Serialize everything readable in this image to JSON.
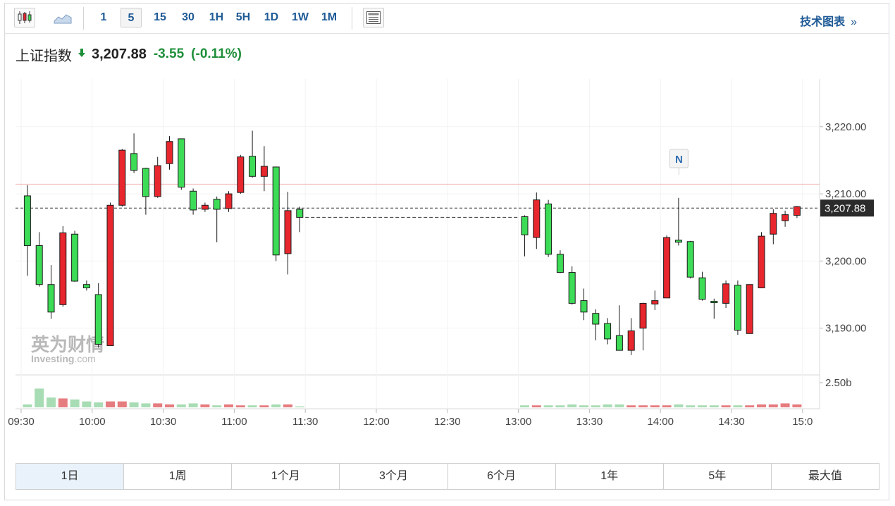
{
  "toolbar": {
    "intervals": [
      "1",
      "5",
      "15",
      "30",
      "1H",
      "5H",
      "1D",
      "1W",
      "1M"
    ],
    "active_interval": "5",
    "tech_link": "技术图表",
    "tech_link_arrow": "»"
  },
  "quote": {
    "name": "上证指数",
    "price": "3,207.88",
    "change": "-3.55",
    "change_pct": "(-0.11%)",
    "direction": "down",
    "up_color": "#e8262d",
    "down_color": "#1f8f3a"
  },
  "watermark": {
    "line1": "英为财情",
    "line2": "Investing",
    "line2_suffix": ".com"
  },
  "chart_data": {
    "type": "candlestick",
    "interval": "5",
    "x_ticks": [
      "09:30",
      "10:00",
      "10:30",
      "11:00",
      "11:30",
      "12:00",
      "12:30",
      "13:00",
      "13:30",
      "14:00",
      "14:30",
      "15:0"
    ],
    "y_ticks": [
      "3,220.00",
      "3,210.00",
      "3,200.00",
      "3,190.00"
    ],
    "y_tick_values": [
      3220,
      3210,
      3200,
      3190
    ],
    "ylim": [
      3183.04,
      3227.11
    ],
    "volume_tick_label": "2.50b",
    "volume_max": 3.0,
    "last_price": 3207.88,
    "last_price_label": "3,207.88",
    "prev_close": 3211.43,
    "prev_close_color": "#f4b8b8",
    "up_color": "#e8262d",
    "down_color": "#3ddc57",
    "candle_outline": "#1a1a1a",
    "annotation": {
      "text": "N",
      "time": "14:05"
    },
    "sessions": [
      {
        "start": "09:30",
        "candles": [
          {
            "o": 3209.7,
            "h": 3211.3,
            "l": 3197.8,
            "c": 3202.3
          },
          {
            "o": 3202.3,
            "h": 3204.3,
            "l": 3196.2,
            "c": 3196.5
          },
          {
            "o": 3196.5,
            "h": 3199.4,
            "l": 3191.4,
            "c": 3192.4
          },
          {
            "o": 3193.5,
            "h": 3205.2,
            "l": 3193.2,
            "c": 3204.2
          },
          {
            "o": 3204.0,
            "h": 3204.5,
            "l": 3196.9,
            "c": 3197.0
          },
          {
            "o": 3196.5,
            "h": 3197.1,
            "l": 3195.6,
            "c": 3196.0
          },
          {
            "o": 3195.0,
            "h": 3196.7,
            "l": 3187.1,
            "c": 3187.6
          },
          {
            "o": 3187.4,
            "h": 3208.7,
            "l": 3187.4,
            "c": 3208.3
          },
          {
            "o": 3208.3,
            "h": 3216.7,
            "l": 3208.1,
            "c": 3216.5
          },
          {
            "o": 3216.0,
            "h": 3219.0,
            "l": 3213.1,
            "c": 3213.5
          },
          {
            "o": 3213.8,
            "h": 3213.9,
            "l": 3206.9,
            "c": 3209.6
          },
          {
            "o": 3209.6,
            "h": 3215.5,
            "l": 3209.4,
            "c": 3214.2
          },
          {
            "o": 3214.5,
            "h": 3218.6,
            "l": 3213.6,
            "c": 3217.8
          },
          {
            "o": 3218.2,
            "h": 3218.2,
            "l": 3210.6,
            "c": 3211.0
          },
          {
            "o": 3210.4,
            "h": 3210.8,
            "l": 3206.9,
            "c": 3207.6
          },
          {
            "o": 3207.7,
            "h": 3208.7,
            "l": 3207.3,
            "c": 3208.3
          },
          {
            "o": 3209.2,
            "h": 3209.6,
            "l": 3202.8,
            "c": 3207.7
          },
          {
            "o": 3207.8,
            "h": 3210.4,
            "l": 3207.3,
            "c": 3210.0
          },
          {
            "o": 3210.2,
            "h": 3215.8,
            "l": 3210.0,
            "c": 3215.5
          },
          {
            "o": 3215.6,
            "h": 3219.4,
            "l": 3212.4,
            "c": 3212.6
          },
          {
            "o": 3212.6,
            "h": 3217.1,
            "l": 3210.4,
            "c": 3214.1
          },
          {
            "o": 3214.0,
            "h": 3214.0,
            "l": 3200.0,
            "c": 3200.9
          },
          {
            "o": 3201.1,
            "h": 3210.3,
            "l": 3198.0,
            "c": 3207.5
          },
          {
            "o": 3207.7,
            "h": 3208.1,
            "l": 3204.3,
            "c": 3206.5
          }
        ]
      },
      {
        "start": "13:00",
        "candles": [
          {
            "o": 3206.6,
            "h": 3206.8,
            "l": 3200.7,
            "c": 3203.9
          },
          {
            "o": 3203.5,
            "h": 3210.2,
            "l": 3201.8,
            "c": 3209.1
          },
          {
            "o": 3208.5,
            "h": 3209.1,
            "l": 3200.6,
            "c": 3201.0
          },
          {
            "o": 3201.0,
            "h": 3201.6,
            "l": 3198.2,
            "c": 3198.3
          },
          {
            "o": 3198.3,
            "h": 3199.2,
            "l": 3193.5,
            "c": 3193.7
          },
          {
            "o": 3194.1,
            "h": 3195.9,
            "l": 3191.2,
            "c": 3192.4
          },
          {
            "o": 3192.2,
            "h": 3192.8,
            "l": 3188.2,
            "c": 3190.6
          },
          {
            "o": 3190.7,
            "h": 3191.5,
            "l": 3187.6,
            "c": 3188.4
          },
          {
            "o": 3188.9,
            "h": 3193.4,
            "l": 3186.8,
            "c": 3186.7
          },
          {
            "o": 3186.7,
            "h": 3191.5,
            "l": 3186.0,
            "c": 3189.6
          },
          {
            "o": 3190.0,
            "h": 3193.8,
            "l": 3186.7,
            "c": 3193.7
          },
          {
            "o": 3193.6,
            "h": 3195.6,
            "l": 3192.7,
            "c": 3194.1
          },
          {
            "o": 3194.5,
            "h": 3203.8,
            "l": 3194.5,
            "c": 3203.5
          },
          {
            "o": 3203.1,
            "h": 3209.4,
            "l": 3202.3,
            "c": 3202.8
          },
          {
            "o": 3202.9,
            "h": 3203.0,
            "l": 3197.4,
            "c": 3197.6
          },
          {
            "o": 3197.5,
            "h": 3198.4,
            "l": 3194.1,
            "c": 3194.3
          },
          {
            "o": 3194.0,
            "h": 3194.4,
            "l": 3191.4,
            "c": 3193.8
          },
          {
            "o": 3193.7,
            "h": 3197.1,
            "l": 3193.0,
            "c": 3196.6
          },
          {
            "o": 3196.4,
            "h": 3197.1,
            "l": 3189.0,
            "c": 3189.7
          },
          {
            "o": 3189.2,
            "h": 3196.5,
            "l": 3189.2,
            "c": 3196.5
          },
          {
            "o": 3196.0,
            "h": 3204.3,
            "l": 3196.0,
            "c": 3203.7
          },
          {
            "o": 3204.0,
            "h": 3207.7,
            "l": 3202.5,
            "c": 3207.1
          },
          {
            "o": 3206.0,
            "h": 3207.5,
            "l": 3205.1,
            "c": 3206.9
          },
          {
            "o": 3206.8,
            "h": 3208.2,
            "l": 3206.4,
            "c": 3208.1
          }
        ]
      }
    ],
    "volumes": [
      [
        0.3,
        1.9,
        1.0,
        0.9,
        0.8,
        0.6,
        0.5,
        0.6,
        0.6,
        0.5,
        0.4,
        0.4,
        0.3,
        0.3,
        0.4,
        0.3,
        0.2,
        0.3,
        0.2,
        0.2,
        0.2,
        0.3,
        0.3,
        0.1
      ],
      [
        0.2,
        0.2,
        0.2,
        0.2,
        0.3,
        0.2,
        0.2,
        0.3,
        0.3,
        0.2,
        0.2,
        0.2,
        0.2,
        0.3,
        0.2,
        0.2,
        0.2,
        0.2,
        0.2,
        0.2,
        0.3,
        0.3,
        0.4,
        0.3
      ]
    ]
  },
  "ranges": [
    "1日",
    "1周",
    "1个月",
    "3个月",
    "6个月",
    "1年",
    "5年",
    "最大值"
  ],
  "active_range": "1日"
}
